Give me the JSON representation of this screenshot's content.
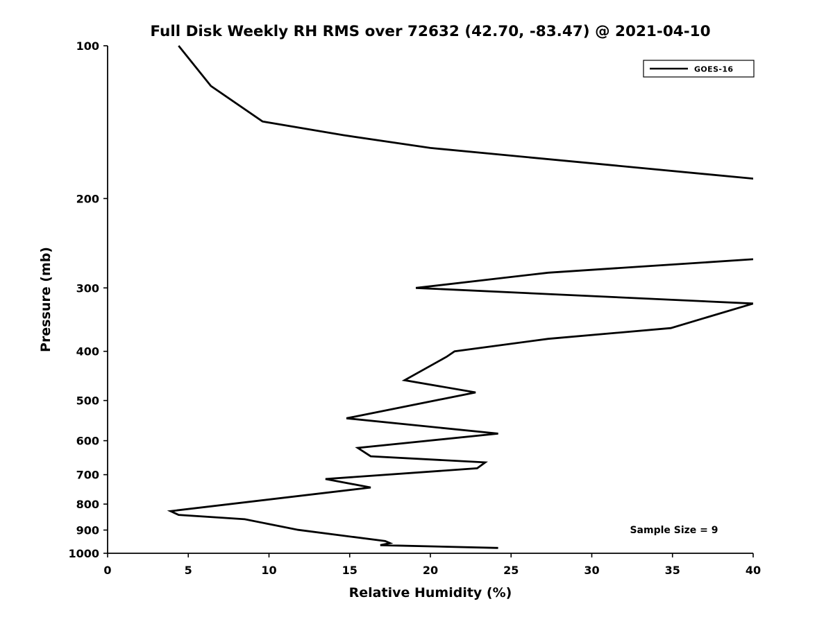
{
  "chart_data": {
    "type": "line",
    "title": "Full Disk Weekly RH RMS over 72632 (42.70, -83.47) @ 2021-04-10",
    "xlabel": "Relative Humidity (%)",
    "ylabel": "Pressure (mb)",
    "xlim": [
      0,
      40
    ],
    "ylim": [
      100,
      1000
    ],
    "y_scale": "log",
    "y_reversed": true,
    "grid": false,
    "xticks": [
      0,
      5,
      10,
      15,
      20,
      25,
      30,
      35,
      40
    ],
    "yticks": [
      100,
      200,
      300,
      400,
      500,
      600,
      700,
      800,
      900,
      1000
    ],
    "legend": {
      "position": "top-right",
      "entries": [
        {
          "label": "GOES-16",
          "color": "#000000",
          "line_width": 2.5
        }
      ]
    },
    "annotation": {
      "text": "Sample Size = 9"
    },
    "series": [
      {
        "name": "GOES-16",
        "color": "#000000",
        "line_width": 2.8,
        "points_format": [
          "relative_humidity_pct",
          "pressure_mb"
        ],
        "points": [
          [
            4.4,
            100
          ],
          [
            6.4,
            120
          ],
          [
            9.6,
            141
          ],
          [
            14.6,
            150
          ],
          [
            20.0,
            159
          ],
          [
            60.0,
            210
          ],
          [
            50.0,
            251
          ],
          [
            27.3,
            280
          ],
          [
            19.1,
            300
          ],
          [
            40.0,
            322
          ],
          [
            34.9,
            360
          ],
          [
            27.3,
            378
          ],
          [
            21.5,
            400
          ],
          [
            21.0,
            410
          ],
          [
            18.4,
            456
          ],
          [
            22.8,
            482
          ],
          [
            14.8,
            542
          ],
          [
            24.2,
            581
          ],
          [
            15.5,
            620
          ],
          [
            16.3,
            644
          ],
          [
            23.4,
            662
          ],
          [
            22.9,
            680
          ],
          [
            13.5,
            714
          ],
          [
            16.3,
            742
          ],
          [
            3.9,
            826
          ],
          [
            4.4,
            840
          ],
          [
            8.5,
            857
          ],
          [
            11.8,
            899
          ],
          [
            17.2,
            946
          ],
          [
            17.5,
            955
          ],
          [
            16.9,
            964
          ],
          [
            24.2,
            976
          ]
        ]
      }
    ]
  }
}
